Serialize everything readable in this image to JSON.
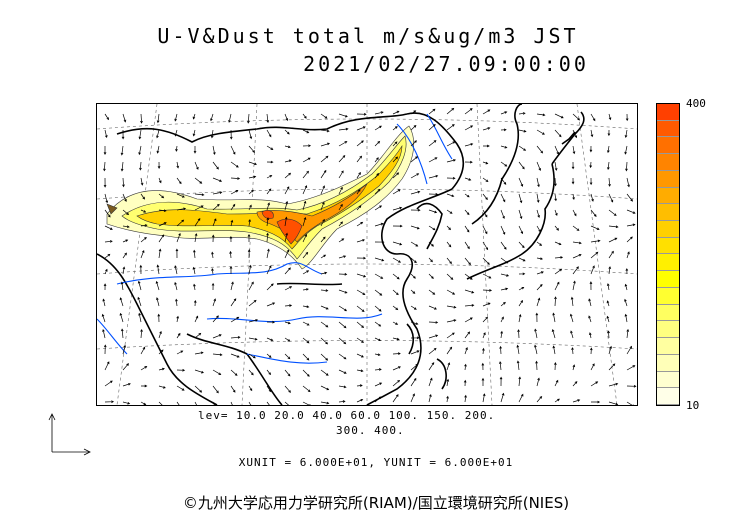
{
  "header": {
    "title": "U-V&Dust total m/s&ug/m3 JST",
    "datetime": "2021/02/27.09:00:00"
  },
  "colorbar": {
    "max_label": "400",
    "min_label": "10",
    "colors": [
      "#ff4000",
      "#ff5a00",
      "#ff7000",
      "#ff8400",
      "#ff9800",
      "#ffac00",
      "#ffbe00",
      "#ffd000",
      "#ffe000",
      "#fff000",
      "#ffff00",
      "#ffff30",
      "#ffff60",
      "#ffff80",
      "#ffffa0",
      "#ffffb8",
      "#ffffd0",
      "#ffffe8"
    ]
  },
  "levels": {
    "line1": "lev= 10.0 20.0 40.0 60.0 100. 150. 200.",
    "line2": "300. 400."
  },
  "units": {
    "text": "XUNIT = 6.000E+01, YUNIT = 6.000E+01"
  },
  "footer": {
    "copyright": "©九州大学応用力学研究所(RIAM)/国立環境研究所(NIES)"
  }
}
